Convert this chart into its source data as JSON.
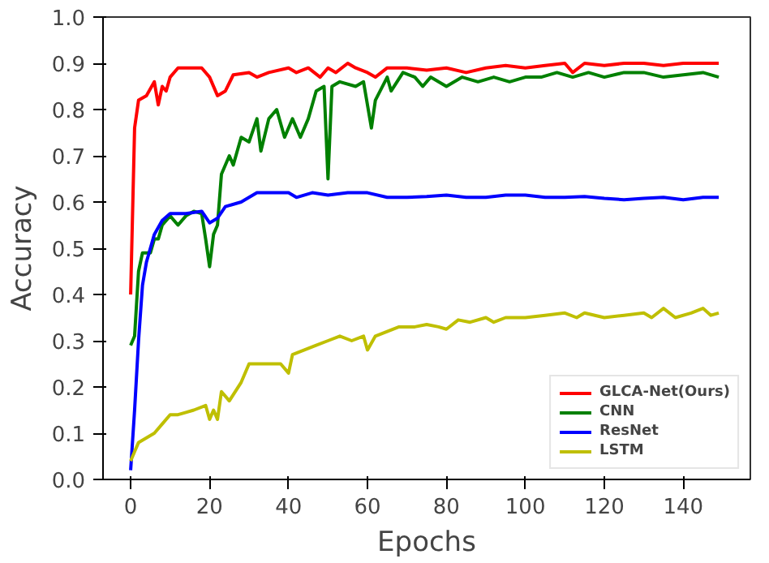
{
  "chart_data": {
    "type": "line",
    "xlabel": "Epochs",
    "ylabel": "Accuracy",
    "xlim": [
      -7,
      157
    ],
    "ylim": [
      0,
      1
    ],
    "xticks": [
      0,
      20,
      40,
      60,
      80,
      100,
      120,
      140
    ],
    "yticks": [
      {
        "value": 0,
        "label": "0.0"
      },
      {
        "value": 0.1,
        "label": "0.1"
      },
      {
        "value": 0.2,
        "label": "0.2"
      },
      {
        "value": 0.3,
        "label": "0.3"
      },
      {
        "value": 0.4,
        "label": "0.4"
      },
      {
        "value": 0.5,
        "label": "0.5"
      },
      {
        "value": 0.6,
        "label": "0.6"
      },
      {
        "value": 0.7,
        "label": "0.7"
      },
      {
        "value": 0.8,
        "label": "0.8"
      },
      {
        "value": 0.9,
        "label": "0.9"
      },
      {
        "value": 1,
        "label": "1.0"
      }
    ],
    "grid": false,
    "legend": "bottom right",
    "line_style": "solid",
    "series": [
      {
        "name": "GLCA-Net(Ours)",
        "color": "#ff0000",
        "x": [
          0,
          1,
          2,
          4,
          6,
          7,
          8,
          9,
          10,
          12,
          15,
          18,
          20,
          22,
          24,
          26,
          30,
          32,
          35,
          40,
          42,
          45,
          48,
          50,
          52,
          55,
          57,
          60,
          62,
          65,
          70,
          75,
          80,
          85,
          90,
          95,
          100,
          105,
          110,
          112,
          115,
          120,
          125,
          130,
          135,
          140,
          145,
          149
        ],
        "values": [
          0.4,
          0.76,
          0.82,
          0.83,
          0.86,
          0.81,
          0.85,
          0.84,
          0.87,
          0.89,
          0.89,
          0.89,
          0.87,
          0.83,
          0.84,
          0.875,
          0.88,
          0.87,
          0.88,
          0.89,
          0.88,
          0.89,
          0.87,
          0.89,
          0.88,
          0.9,
          0.89,
          0.88,
          0.87,
          0.89,
          0.89,
          0.885,
          0.89,
          0.88,
          0.89,
          0.895,
          0.89,
          0.895,
          0.9,
          0.88,
          0.9,
          0.895,
          0.9,
          0.9,
          0.895,
          0.9,
          0.9,
          0.9
        ]
      },
      {
        "name": "CNN",
        "color": "#008000",
        "x": [
          0,
          1,
          2,
          3,
          5,
          6,
          7,
          8,
          10,
          12,
          14,
          16,
          18,
          19,
          20,
          21,
          22,
          23,
          25,
          26,
          28,
          30,
          32,
          33,
          35,
          37,
          39,
          41,
          43,
          45,
          47,
          49,
          50,
          51,
          53,
          57,
          59,
          61,
          62,
          65,
          66,
          69,
          72,
          74,
          76,
          80,
          84,
          88,
          92,
          96,
          100,
          104,
          108,
          112,
          116,
          120,
          125,
          130,
          135,
          140,
          145,
          149
        ],
        "values": [
          0.29,
          0.31,
          0.45,
          0.49,
          0.49,
          0.52,
          0.52,
          0.55,
          0.57,
          0.55,
          0.57,
          0.58,
          0.575,
          0.52,
          0.46,
          0.53,
          0.55,
          0.66,
          0.7,
          0.68,
          0.74,
          0.73,
          0.78,
          0.71,
          0.78,
          0.8,
          0.74,
          0.78,
          0.74,
          0.78,
          0.84,
          0.85,
          0.65,
          0.85,
          0.86,
          0.85,
          0.86,
          0.76,
          0.82,
          0.87,
          0.84,
          0.88,
          0.87,
          0.85,
          0.87,
          0.85,
          0.87,
          0.86,
          0.87,
          0.86,
          0.87,
          0.87,
          0.88,
          0.87,
          0.88,
          0.87,
          0.88,
          0.88,
          0.87,
          0.875,
          0.88,
          0.87
        ]
      },
      {
        "name": "ResNet",
        "color": "#0000ff",
        "x": [
          0,
          1,
          2,
          3,
          4,
          5,
          6,
          8,
          10,
          14,
          18,
          20,
          22,
          24,
          28,
          32,
          36,
          40,
          42,
          46,
          50,
          55,
          60,
          65,
          70,
          75,
          80,
          85,
          90,
          95,
          100,
          105,
          110,
          115,
          120,
          125,
          130,
          135,
          140,
          145,
          149
        ],
        "values": [
          0.02,
          0.15,
          0.3,
          0.42,
          0.47,
          0.5,
          0.53,
          0.56,
          0.575,
          0.575,
          0.58,
          0.555,
          0.565,
          0.59,
          0.6,
          0.62,
          0.62,
          0.62,
          0.61,
          0.62,
          0.615,
          0.62,
          0.62,
          0.61,
          0.61,
          0.612,
          0.615,
          0.61,
          0.61,
          0.615,
          0.615,
          0.61,
          0.61,
          0.612,
          0.608,
          0.605,
          0.608,
          0.61,
          0.605,
          0.61,
          0.61
        ]
      },
      {
        "name": "LSTM",
        "color": "#bfbf00",
        "x": [
          0,
          1,
          2,
          4,
          6,
          8,
          10,
          12,
          14,
          16,
          19,
          20,
          21,
          22,
          23,
          25,
          28,
          30,
          34,
          38,
          40,
          41,
          44,
          47,
          50,
          53,
          56,
          59,
          60,
          62,
          65,
          68,
          72,
          75,
          78,
          80,
          83,
          86,
          90,
          92,
          95,
          100,
          105,
          110,
          113,
          115,
          120,
          125,
          130,
          132,
          135,
          138,
          142,
          145,
          147,
          149
        ],
        "values": [
          0.04,
          0.06,
          0.08,
          0.09,
          0.1,
          0.12,
          0.14,
          0.14,
          0.145,
          0.15,
          0.16,
          0.13,
          0.15,
          0.13,
          0.19,
          0.17,
          0.21,
          0.25,
          0.25,
          0.25,
          0.23,
          0.27,
          0.28,
          0.29,
          0.3,
          0.31,
          0.3,
          0.31,
          0.28,
          0.31,
          0.32,
          0.33,
          0.33,
          0.335,
          0.33,
          0.325,
          0.345,
          0.34,
          0.35,
          0.34,
          0.35,
          0.35,
          0.355,
          0.36,
          0.35,
          0.36,
          0.35,
          0.355,
          0.36,
          0.35,
          0.37,
          0.35,
          0.36,
          0.37,
          0.355,
          0.36
        ]
      }
    ]
  }
}
